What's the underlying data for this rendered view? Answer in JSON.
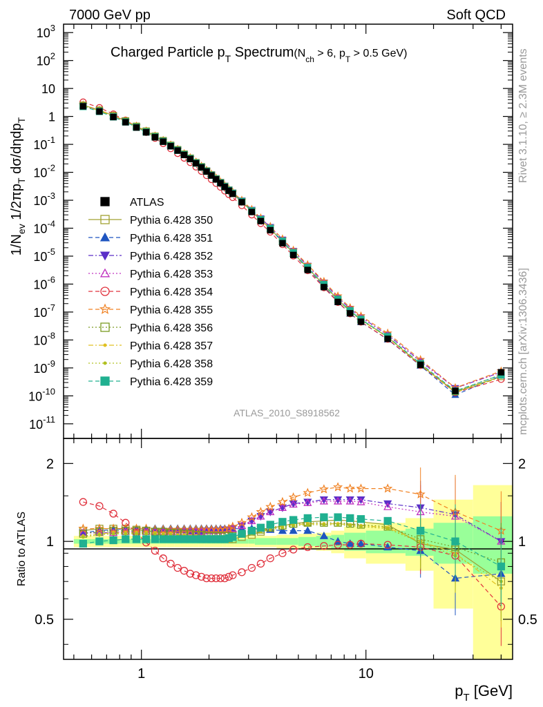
{
  "header": {
    "left": "7000 GeV pp",
    "right": "Soft QCD"
  },
  "side": {
    "rivet": "Rivet 3.1.10, ≥ 2.3M events",
    "mcplots": "mcplots.cern.ch [arXiv:1306.3436]"
  },
  "chart_data": [
    {
      "type": "scatter",
      "title_main": "Charged Particle p",
      "title_sub": "T",
      "title_after": " Spectrum",
      "title_cond": "(N",
      "title_cond_sub1": "ch",
      "title_cond_mid": " > 6, p",
      "title_cond_sub2": "T",
      "title_cond_end": " > 0.5 GeV)",
      "analysis_id": "ATLAS_2010_S8918562",
      "ylabel": "1/N_ev 1/2πp_T dσ/dηdp_T",
      "yscale": "log",
      "xscale": "log",
      "xlim": [
        0.45,
        45
      ],
      "ylim": [
        3e-12,
        2000
      ],
      "ytick_labels": [
        "10^-11",
        "10^-10",
        "10^-9",
        "10^-8",
        "10^-7",
        "10^-6",
        "10^-5",
        "10^-4",
        "10^-3",
        "10^-2",
        "10^-1",
        "1",
        "10",
        "10^2",
        "10^3"
      ],
      "legend_placement": "left-middle",
      "x": [
        0.55,
        0.65,
        0.75,
        0.85,
        0.95,
        1.05,
        1.15,
        1.25,
        1.35,
        1.45,
        1.55,
        1.65,
        1.75,
        1.85,
        1.95,
        2.05,
        2.15,
        2.25,
        2.35,
        2.45,
        2.55,
        2.8,
        3.1,
        3.4,
        3.75,
        4.25,
        4.75,
        5.5,
        6.5,
        7.5,
        8.5,
        9.5,
        12.5,
        17.5,
        25,
        40
      ],
      "atlas": [
        2.3,
        1.5,
        0.95,
        0.62,
        0.4,
        0.27,
        0.18,
        0.125,
        0.086,
        0.06,
        0.042,
        0.03,
        0.021,
        0.015,
        0.0107,
        0.0077,
        0.0056,
        0.0041,
        0.003,
        0.0022,
        0.0017,
        0.00085,
        0.00038,
        0.00018,
        8.5e-05,
        2.9e-05,
        1.1e-05,
        3.2e-06,
        7.8e-07,
        2.3e-07,
        9e-08,
        4.5e-08,
        1.1e-08,
        1.3e-09,
        1.5e-10,
        7e-10
      ]
    },
    {
      "type": "scatter",
      "ylabel": "Ratio to ATLAS",
      "xlabel": "p_T [GeV]",
      "xscale": "log",
      "yscale": "log",
      "ylim": [
        0.35,
        2.5
      ],
      "ytick_labels": [
        "0.5",
        "1",
        "2"
      ],
      "xtick_labels": [
        "1",
        "10"
      ],
      "series": [
        {
          "name": "ATLAS",
          "color": "#000000",
          "marker": "filled-square",
          "line": "none"
        },
        {
          "name": "Pythia 6.428 350",
          "color": "#a0a030",
          "marker": "open-square",
          "line": "solid",
          "ratio": [
            1.1,
            1.12,
            1.12,
            1.12,
            1.11,
            1.1,
            1.09,
            1.08,
            1.07,
            1.06,
            1.05,
            1.04,
            1.03,
            1.02,
            1.02,
            1.02,
            1.02,
            1.02,
            1.02,
            1.02,
            1.02,
            1.04,
            1.06,
            1.09,
            1.12,
            1.15,
            1.17,
            1.19,
            1.2,
            1.21,
            1.2,
            1.19,
            1.16,
            0.98,
            0.93,
            0.7
          ]
        },
        {
          "name": "Pythia 6.428 351",
          "color": "#1f55c0",
          "marker": "filled-triangle",
          "line": "dashed",
          "ratio": [
            1.08,
            1.1,
            1.11,
            1.12,
            1.12,
            1.12,
            1.12,
            1.12,
            1.12,
            1.12,
            1.12,
            1.12,
            1.12,
            1.12,
            1.12,
            1.12,
            1.12,
            1.12,
            1.12,
            1.12,
            1.12,
            1.12,
            1.12,
            1.12,
            1.11,
            1.1,
            1.1,
            1.1,
            1.05,
            1.0,
            0.98,
            0.98,
            0.95,
            0.92,
            0.72,
            0.75
          ]
        },
        {
          "name": "Pythia 6.428 352",
          "color": "#5a2fc8",
          "marker": "filled-triangle-down",
          "line": "dashdot",
          "ratio": [
            1.08,
            1.08,
            1.08,
            1.09,
            1.09,
            1.09,
            1.09,
            1.09,
            1.09,
            1.09,
            1.09,
            1.09,
            1.09,
            1.09,
            1.1,
            1.1,
            1.1,
            1.1,
            1.11,
            1.11,
            1.12,
            1.15,
            1.2,
            1.25,
            1.3,
            1.35,
            1.4,
            1.42,
            1.45,
            1.45,
            1.45,
            1.45,
            1.4,
            1.35,
            1.27,
            1.0
          ]
        },
        {
          "name": "Pythia 6.428 353",
          "color": "#c030c0",
          "marker": "open-triangle",
          "line": "dotted",
          "ratio": [
            1.08,
            1.08,
            1.08,
            1.09,
            1.09,
            1.09,
            1.09,
            1.09,
            1.09,
            1.09,
            1.09,
            1.09,
            1.09,
            1.09,
            1.1,
            1.1,
            1.1,
            1.1,
            1.11,
            1.11,
            1.12,
            1.15,
            1.2,
            1.25,
            1.3,
            1.35,
            1.39,
            1.41,
            1.43,
            1.43,
            1.43,
            1.42,
            1.36,
            1.3,
            1.25,
            1.0
          ]
        },
        {
          "name": "Pythia 6.428 354",
          "color": "#e0303c",
          "marker": "open-circle",
          "line": "dashed",
          "ratio": [
            1.42,
            1.37,
            1.28,
            1.18,
            1.08,
            0.99,
            0.92,
            0.86,
            0.82,
            0.79,
            0.77,
            0.75,
            0.74,
            0.73,
            0.72,
            0.72,
            0.72,
            0.72,
            0.72,
            0.73,
            0.74,
            0.76,
            0.79,
            0.82,
            0.86,
            0.9,
            0.93,
            0.95,
            0.96,
            0.97,
            0.97,
            0.98,
            0.97,
            0.95,
            0.88,
            0.56
          ]
        },
        {
          "name": "Pythia 6.428 355",
          "color": "#f08020",
          "marker": "open-star",
          "line": "dashed",
          "ratio": [
            1.12,
            1.12,
            1.12,
            1.12,
            1.12,
            1.12,
            1.11,
            1.11,
            1.11,
            1.11,
            1.11,
            1.11,
            1.11,
            1.11,
            1.11,
            1.11,
            1.11,
            1.11,
            1.11,
            1.12,
            1.14,
            1.18,
            1.24,
            1.3,
            1.36,
            1.42,
            1.48,
            1.54,
            1.59,
            1.62,
            1.6,
            1.6,
            1.6,
            1.52,
            1.3,
            1.1
          ]
        },
        {
          "name": "Pythia 6.428 356",
          "color": "#7a9a20",
          "marker": "open-square",
          "line": "dotted",
          "ratio": [
            1.07,
            1.09,
            1.1,
            1.1,
            1.1,
            1.1,
            1.09,
            1.09,
            1.08,
            1.08,
            1.07,
            1.07,
            1.06,
            1.06,
            1.05,
            1.05,
            1.05,
            1.05,
            1.05,
            1.05,
            1.05,
            1.07,
            1.09,
            1.11,
            1.13,
            1.15,
            1.17,
            1.18,
            1.18,
            1.18,
            1.17,
            1.16,
            1.14,
            1.02,
            0.95,
            0.83
          ]
        },
        {
          "name": "Pythia 6.428 357",
          "color": "#e0c020",
          "marker": "dot",
          "line": "dashdot",
          "ratio": [
            1.05,
            1.07,
            1.08,
            1.08,
            1.08,
            1.08,
            1.08,
            1.07,
            1.07,
            1.06,
            1.06,
            1.05,
            1.05,
            1.04,
            1.04,
            1.04,
            1.04,
            1.04,
            1.04,
            1.04,
            1.04,
            1.06,
            1.08,
            1.1,
            1.12,
            1.14,
            1.16,
            1.17,
            1.17,
            1.17,
            1.16,
            1.15,
            1.13,
            1.0,
            0.9,
            0.66
          ]
        },
        {
          "name": "Pythia 6.428 358",
          "color": "#b0c020",
          "marker": "dot",
          "line": "dotted",
          "ratio": [
            1.04,
            1.06,
            1.07,
            1.07,
            1.07,
            1.07,
            1.07,
            1.06,
            1.06,
            1.05,
            1.05,
            1.04,
            1.04,
            1.03,
            1.03,
            1.03,
            1.03,
            1.03,
            1.03,
            1.03,
            1.03,
            1.05,
            1.07,
            1.09,
            1.11,
            1.13,
            1.15,
            1.16,
            1.16,
            1.16,
            1.15,
            1.14,
            1.12,
            0.99,
            0.88,
            0.7
          ]
        },
        {
          "name": "Pythia 6.428 359",
          "color": "#20b090",
          "marker": "filled-square",
          "line": "dashed",
          "ratio": [
            0.98,
            1.0,
            1.01,
            1.02,
            1.02,
            1.02,
            1.02,
            1.02,
            1.02,
            1.02,
            1.02,
            1.02,
            1.02,
            1.02,
            1.02,
            1.02,
            1.02,
            1.02,
            1.02,
            1.03,
            1.04,
            1.07,
            1.1,
            1.13,
            1.16,
            1.19,
            1.21,
            1.23,
            1.24,
            1.24,
            1.23,
            1.22,
            1.2,
            1.1,
            1.0,
            0.8
          ]
        }
      ],
      "band_edges": [
        0.5,
        0.6,
        0.7,
        0.8,
        0.9,
        1.0,
        1.1,
        1.2,
        1.3,
        1.4,
        1.5,
        1.6,
        1.7,
        1.8,
        1.9,
        2.0,
        2.1,
        2.2,
        2.3,
        2.4,
        2.5,
        2.6,
        3.0,
        3.2,
        3.6,
        4.0,
        4.5,
        5.0,
        6.0,
        7.0,
        8.0,
        10.0,
        15.0,
        20.0,
        30.0,
        50.0
      ],
      "band_stat": [
        0.02,
        0.02,
        0.02,
        0.02,
        0.02,
        0.02,
        0.02,
        0.02,
        0.02,
        0.02,
        0.02,
        0.02,
        0.02,
        0.02,
        0.02,
        0.02,
        0.02,
        0.02,
        0.02,
        0.02,
        0.02,
        0.02,
        0.02,
        0.03,
        0.03,
        0.03,
        0.03,
        0.04,
        0.05,
        0.06,
        0.08,
        0.1,
        0.12,
        0.18,
        0.25,
        0.3
      ],
      "band_tot": [
        0.05,
        0.05,
        0.05,
        0.05,
        0.05,
        0.05,
        0.05,
        0.05,
        0.05,
        0.05,
        0.05,
        0.05,
        0.05,
        0.05,
        0.05,
        0.05,
        0.05,
        0.05,
        0.05,
        0.05,
        0.05,
        0.05,
        0.05,
        0.05,
        0.05,
        0.06,
        0.06,
        0.07,
        0.08,
        0.1,
        0.14,
        0.18,
        0.23,
        0.45,
        0.65,
        0.7
      ]
    }
  ]
}
